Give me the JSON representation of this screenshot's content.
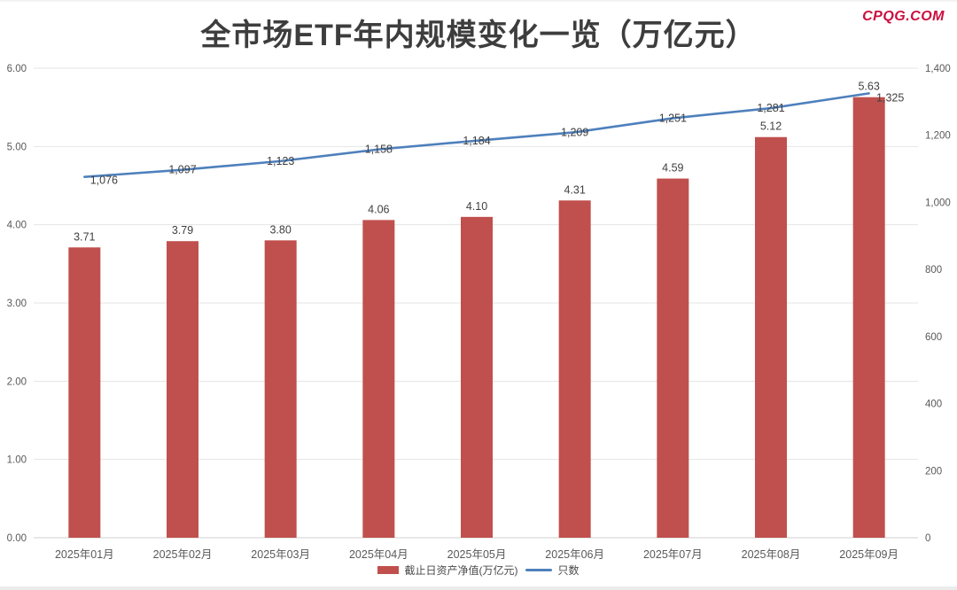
{
  "title": "全市场ETF年内规模变化一览（万亿元）",
  "watermark": "CPQG.COM",
  "colors": {
    "bar": "#c0504d",
    "line": "#4e80bc",
    "grid": "#e4e4e4",
    "baseline": "#d2d2d2",
    "axis_text": "#595959",
    "label_text": "#3f3f3f",
    "title_text": "#3d3d3d",
    "watermark": "#cb0e3f"
  },
  "legend": {
    "items": [
      {
        "label": "截止日资产净值(万亿元)",
        "type": "bar"
      },
      {
        "label": "只数",
        "type": "line"
      }
    ]
  },
  "chart_data": {
    "type": "bar",
    "title": "全市场ETF年内规模变化一览（万亿元）",
    "categories": [
      "2025年01月",
      "2025年02月",
      "2025年03月",
      "2025年04月",
      "2025年05月",
      "2025年06月",
      "2025年07月",
      "2025年08月",
      "2025年09月"
    ],
    "series": [
      {
        "name": "截止日资产净值(万亿元)",
        "type": "bar",
        "axis": "left",
        "values": [
          3.71,
          3.79,
          3.8,
          4.06,
          4.1,
          4.31,
          4.59,
          5.12,
          5.63
        ],
        "value_labels": [
          "3.71",
          "3.79",
          "3.80",
          "4.06",
          "4.10",
          "4.31",
          "4.59",
          "5.12",
          "5.63"
        ]
      },
      {
        "name": "只数",
        "type": "line",
        "axis": "right",
        "values": [
          1076,
          1097,
          1123,
          1158,
          1184,
          1209,
          1251,
          1281,
          1325
        ],
        "value_labels": [
          "1,076",
          "1,097",
          "1,123",
          "1,158",
          "1,184",
          "1,209",
          "1,251",
          "1,281",
          "1,325"
        ]
      }
    ],
    "left_axis": {
      "min": 0,
      "max": 6,
      "step": 1,
      "tick_labels": [
        "0.00",
        "1.00",
        "2.00",
        "3.00",
        "4.00",
        "5.00",
        "6.00"
      ]
    },
    "right_axis": {
      "min": 0,
      "max": 1400,
      "step": 200,
      "tick_labels": [
        "0",
        "200",
        "400",
        "600",
        "800",
        "1,000",
        "1,200",
        "1,400"
      ]
    },
    "grid": true,
    "legend_position": "bottom"
  }
}
